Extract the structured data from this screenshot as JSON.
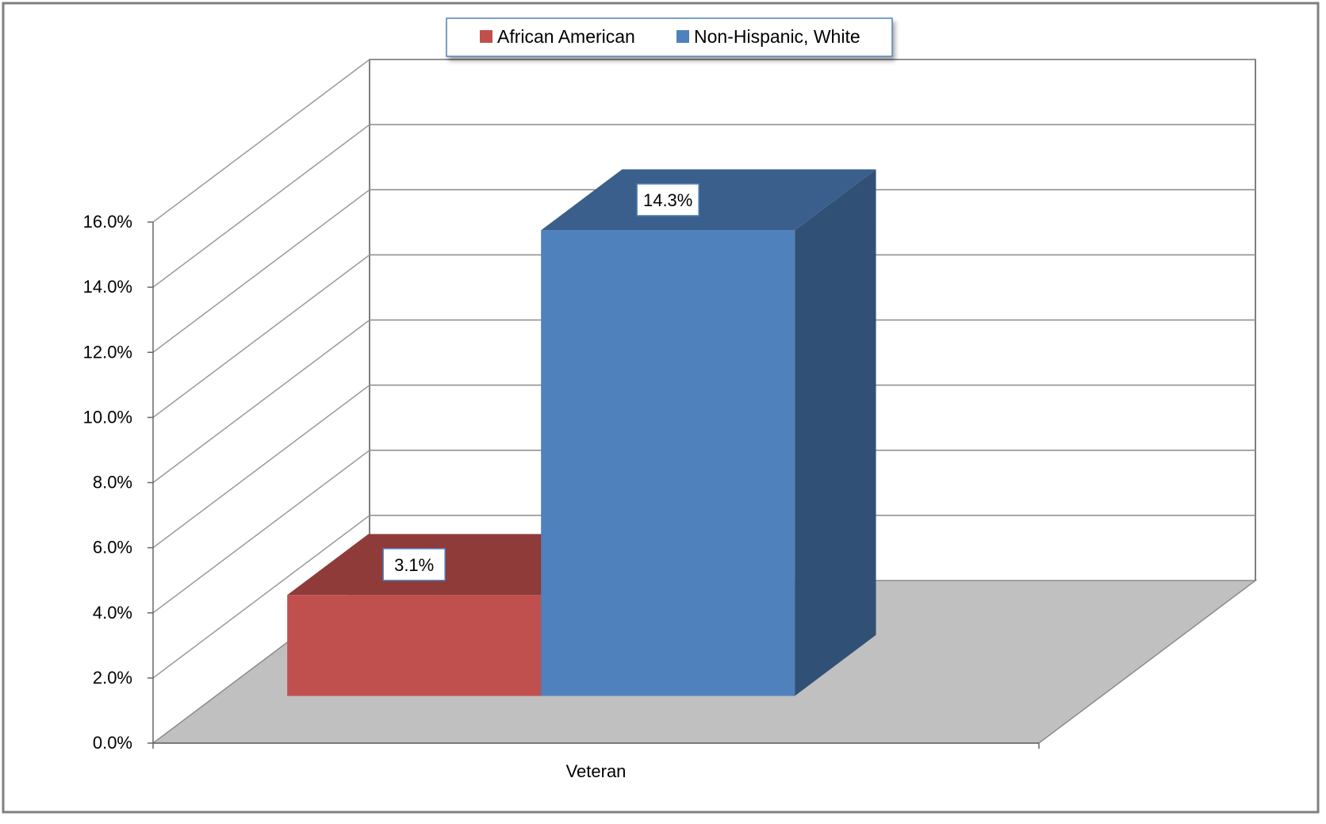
{
  "chart_data": {
    "type": "bar",
    "style": "3d-clustered",
    "title": "",
    "xlabel": "",
    "ylabel": "",
    "categories": [
      "Veteran"
    ],
    "series": [
      {
        "name": "African American",
        "values": [
          3.1
        ],
        "color": "#C0504D",
        "label": "3.1%"
      },
      {
        "name": "Non-Hispanic, White",
        "values": [
          14.3
        ],
        "color": "#4F81BD",
        "label": "14.3%"
      }
    ],
    "ylim": [
      0,
      16
    ],
    "ytick_step": 2,
    "ytick_labels": [
      "0.0%",
      "2.0%",
      "4.0%",
      "6.0%",
      "8.0%",
      "10.0%",
      "12.0%",
      "14.0%",
      "16.0%"
    ],
    "grid": true,
    "legend": "top-center",
    "floor_color": "#C0C0C0"
  }
}
